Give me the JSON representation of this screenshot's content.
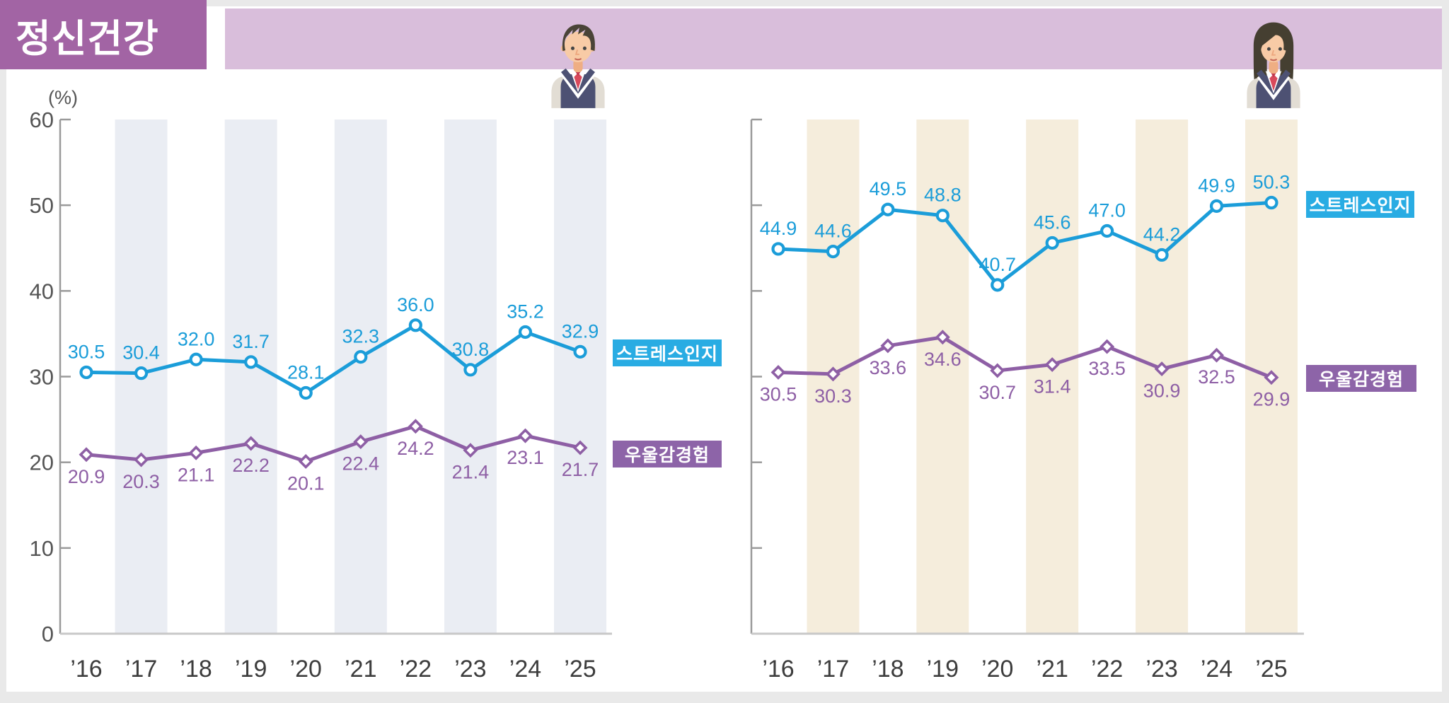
{
  "page": {
    "title": "정신건강",
    "unit_label": "(%)"
  },
  "legend": {
    "stress": "스트레스인지",
    "depression": "우울감경험"
  },
  "colors": {
    "header_box": "#a264a4",
    "header_strip": "#d9bedb",
    "stress_line": "#1b9dd9",
    "stress_badge": "#29ace3",
    "depression_line": "#8e5fa5",
    "depression_badge": "#8d64a8",
    "male_stripe": "#eaedf3",
    "female_stripe": "#f5eddc",
    "axis": "#9a9a9a",
    "baseline": "#c8c8c8",
    "tick_text": "#555555",
    "year_text": "#3d3d3d"
  },
  "chart_data": [
    {
      "type": "line",
      "group_icon": "male-student-icon",
      "categories": [
        "’16",
        "’17",
        "’18",
        "’19",
        "’20",
        "’21",
        "’22",
        "’23",
        "’24",
        "’25"
      ],
      "series": [
        {
          "name": "스트레스인지",
          "marker": "circle",
          "color": "#1b9dd9",
          "values": [
            30.5,
            30.4,
            32.0,
            31.7,
            28.1,
            32.3,
            36.0,
            30.8,
            35.2,
            32.9
          ]
        },
        {
          "name": "우울감경험",
          "marker": "diamond",
          "color": "#8e5fa5",
          "values": [
            20.9,
            20.3,
            21.1,
            22.2,
            20.1,
            22.4,
            24.2,
            21.4,
            23.1,
            21.7
          ]
        }
      ],
      "ylabel": "(%)",
      "ylim": [
        0,
        60
      ],
      "yticks": [
        0,
        10,
        20,
        30,
        40,
        50,
        60
      ],
      "y_labels_visible": true,
      "stripe_color": "#eaedf3",
      "grid": "alternating-column-bands"
    },
    {
      "type": "line",
      "group_icon": "female-student-icon",
      "categories": [
        "’16",
        "’17",
        "’18",
        "’19",
        "’20",
        "’21",
        "’22",
        "’23",
        "’24",
        "’25"
      ],
      "series": [
        {
          "name": "스트레스인지",
          "marker": "circle",
          "color": "#1b9dd9",
          "values": [
            44.9,
            44.6,
            49.5,
            48.8,
            40.7,
            45.6,
            47.0,
            44.2,
            49.9,
            50.3
          ]
        },
        {
          "name": "우울감경험",
          "marker": "diamond",
          "color": "#8e5fa5",
          "values": [
            30.5,
            30.3,
            33.6,
            34.6,
            30.7,
            31.4,
            33.5,
            30.9,
            32.5,
            29.9
          ]
        }
      ],
      "ylabel": "",
      "ylim": [
        0,
        60
      ],
      "yticks": [
        0,
        10,
        20,
        30,
        40,
        50,
        60
      ],
      "y_labels_visible": false,
      "stripe_color": "#f5eddc",
      "grid": "alternating-column-bands"
    }
  ]
}
